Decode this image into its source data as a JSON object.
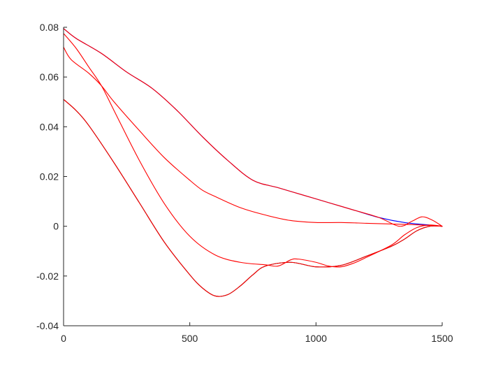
{
  "chart_data": {
    "type": "line",
    "title": "",
    "xlabel": "",
    "ylabel": "",
    "xlim": [
      0,
      1500
    ],
    "ylim": [
      -0.04,
      0.08
    ],
    "x_ticks": [
      0,
      500,
      1000,
      1500
    ],
    "x_tick_labels": [
      "0",
      "500",
      "1000",
      "1500"
    ],
    "y_ticks": [
      -0.04,
      -0.02,
      0,
      0.02,
      0.04,
      0.06,
      0.08
    ],
    "y_tick_labels": [
      "-0.04",
      "-0.02",
      "0",
      "0.02",
      "0.04",
      "0.06",
      "0.08"
    ],
    "grid": false,
    "legend": "none",
    "series": [
      {
        "color": "#0000ff",
        "points": [
          [
            0,
            0.0795
          ],
          [
            50,
            0.0755
          ],
          [
            150,
            0.0695
          ],
          [
            250,
            0.062
          ],
          [
            350,
            0.0555
          ],
          [
            450,
            0.0465
          ],
          [
            550,
            0.036
          ],
          [
            650,
            0.0265
          ],
          [
            750,
            0.0185
          ],
          [
            850,
            0.0155
          ],
          [
            950,
            0.0125
          ],
          [
            1050,
            0.0095
          ],
          [
            1150,
            0.0065
          ],
          [
            1250,
            0.0035
          ],
          [
            1350,
            0.0015
          ],
          [
            1450,
            0.0005
          ],
          [
            1500,
            0.0
          ]
        ]
      },
      {
        "color": "#ff0000",
        "points": [
          [
            0,
            0.0795
          ],
          [
            50,
            0.0755
          ],
          [
            150,
            0.0695
          ],
          [
            250,
            0.062
          ],
          [
            350,
            0.0555
          ],
          [
            450,
            0.0465
          ],
          [
            550,
            0.036
          ],
          [
            650,
            0.0265
          ],
          [
            750,
            0.0185
          ],
          [
            850,
            0.0155
          ],
          [
            950,
            0.0125
          ],
          [
            1050,
            0.0095
          ],
          [
            1150,
            0.0065
          ],
          [
            1250,
            0.0035
          ],
          [
            1330,
            0.0
          ],
          [
            1380,
            0.002
          ],
          [
            1420,
            0.0038
          ],
          [
            1460,
            0.0025
          ],
          [
            1500,
            0.0
          ]
        ]
      },
      {
        "color": "#000000",
        "points": [
          [
            0,
            0.051
          ],
          [
            50,
            0.0465
          ],
          [
            100,
            0.0405
          ],
          [
            200,
            0.0255
          ],
          [
            300,
            0.0095
          ],
          [
            400,
            -0.0065
          ],
          [
            500,
            -0.0195
          ],
          [
            550,
            -0.0248
          ],
          [
            600,
            -0.028
          ],
          [
            650,
            -0.0275
          ],
          [
            700,
            -0.024
          ],
          [
            750,
            -0.0195
          ],
          [
            800,
            -0.016
          ],
          [
            900,
            -0.0145
          ],
          [
            1000,
            -0.0163
          ],
          [
            1100,
            -0.0157
          ],
          [
            1200,
            -0.012
          ],
          [
            1300,
            -0.008
          ],
          [
            1350,
            -0.0052
          ],
          [
            1400,
            -0.0018
          ],
          [
            1450,
            0.0
          ],
          [
            1500,
            0.0
          ]
        ]
      },
      {
        "color": "#ff0000",
        "points": [
          [
            0,
            0.051
          ],
          [
            50,
            0.0465
          ],
          [
            100,
            0.0405
          ],
          [
            200,
            0.0255
          ],
          [
            300,
            0.0095
          ],
          [
            400,
            -0.0065
          ],
          [
            500,
            -0.0195
          ],
          [
            550,
            -0.0248
          ],
          [
            600,
            -0.028
          ],
          [
            650,
            -0.0275
          ],
          [
            700,
            -0.024
          ],
          [
            750,
            -0.0195
          ],
          [
            800,
            -0.016
          ],
          [
            900,
            -0.0145
          ],
          [
            1000,
            -0.0163
          ],
          [
            1100,
            -0.0157
          ],
          [
            1200,
            -0.012
          ],
          [
            1300,
            -0.008
          ],
          [
            1350,
            -0.0052
          ],
          [
            1400,
            -0.0018
          ],
          [
            1450,
            0.0
          ],
          [
            1500,
            0.0
          ]
        ]
      },
      {
        "color": "#ff0000",
        "points": [
          [
            0,
            0.0775
          ],
          [
            50,
            0.0715
          ],
          [
            100,
            0.064
          ],
          [
            150,
            0.0565
          ],
          [
            200,
            0.0465
          ],
          [
            300,
            0.0265
          ],
          [
            400,
            0.009
          ],
          [
            500,
            -0.004
          ],
          [
            600,
            -0.0115
          ],
          [
            700,
            -0.0145
          ],
          [
            800,
            -0.0155
          ],
          [
            850,
            -0.016
          ],
          [
            900,
            -0.0135
          ],
          [
            930,
            -0.0132
          ],
          [
            1000,
            -0.0145
          ],
          [
            1050,
            -0.016
          ],
          [
            1100,
            -0.0163
          ],
          [
            1150,
            -0.0148
          ],
          [
            1200,
            -0.0125
          ],
          [
            1300,
            -0.0075
          ],
          [
            1350,
            -0.0035
          ],
          [
            1400,
            -0.0005
          ],
          [
            1450,
            0.0005
          ],
          [
            1500,
            0.0
          ]
        ]
      },
      {
        "color": "#ff0000",
        "points": [
          [
            0,
            0.072
          ],
          [
            30,
            0.067
          ],
          [
            100,
            0.0615
          ],
          [
            150,
            0.0565
          ],
          [
            200,
            0.05
          ],
          [
            300,
            0.0385
          ],
          [
            400,
            0.0275
          ],
          [
            500,
            0.0185
          ],
          [
            550,
            0.0145
          ],
          [
            600,
            0.012
          ],
          [
            700,
            0.0075
          ],
          [
            800,
            0.0045
          ],
          [
            900,
            0.0023
          ],
          [
            1000,
            0.0015
          ],
          [
            1100,
            0.0015
          ],
          [
            1200,
            0.0012
          ],
          [
            1300,
            0.0009
          ],
          [
            1400,
            0.0006
          ],
          [
            1500,
            0.0
          ]
        ]
      }
    ]
  }
}
